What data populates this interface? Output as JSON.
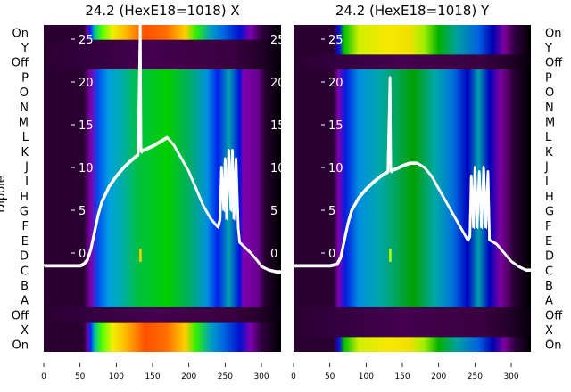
{
  "chart_data": {
    "type": "heatmap",
    "ylabel": "Dipole",
    "row_labels": [
      "On",
      "Y",
      "Off",
      "P",
      "O",
      "N",
      "M",
      "L",
      "K",
      "J",
      "I",
      "H",
      "G",
      "F",
      "E",
      "D",
      "C",
      "B",
      "A",
      "Off",
      "X",
      "On"
    ],
    "x_ticks": [
      0,
      50,
      100,
      150,
      200,
      250,
      300
    ],
    "xlim": [
      0,
      327
    ],
    "trace_ticks": [
      0,
      5,
      10,
      15,
      20,
      25
    ],
    "trace_ylim": [
      -7.0,
      31.2
    ],
    "panels": [
      {
        "title": "24.2 (HexE18=1018) X",
        "row_bands": [
          "hot",
          "dark",
          "dark",
          "mid",
          "mid",
          "mid",
          "mid",
          "mid",
          "mid",
          "mid",
          "mid",
          "mid",
          "mid",
          "mid",
          "mid",
          "mid",
          "mid",
          "mid",
          "mid",
          "dark",
          "hot",
          "hot"
        ],
        "marker": {
          "x": 133,
          "row": "D",
          "color": "#ffd000"
        },
        "trace": {
          "x": [
            0,
            50,
            55,
            60,
            65,
            70,
            75,
            80,
            90,
            100,
            110,
            120,
            130,
            133,
            134,
            136,
            140,
            150,
            160,
            170,
            180,
            190,
            200,
            210,
            220,
            230,
            240,
            243,
            245,
            248,
            250,
            252,
            255,
            258,
            260,
            262,
            265,
            268,
            270,
            275,
            285,
            295,
            300,
            310,
            320,
            327
          ],
          "y": [
            -1.5,
            -1.5,
            -1.3,
            -0.8,
            0.5,
            2.5,
            4.5,
            6,
            7.8,
            9,
            10,
            10.8,
            11.5,
            27,
            11.8,
            12,
            12.1,
            12.5,
            13,
            13.5,
            12.5,
            11,
            9.5,
            7.5,
            5.5,
            4,
            3,
            4,
            10,
            5,
            11,
            4,
            12,
            5,
            12,
            4,
            11,
            3,
            1.2,
            0.8,
            0,
            -1,
            -1.6,
            -2,
            -2.2,
            -2.2
          ]
        }
      },
      {
        "title": "24.2 (HexE18=1018) Y",
        "row_bands": [
          "hot2",
          "hot2",
          "dark",
          "mid2",
          "mid2",
          "mid2",
          "mid2",
          "mid2",
          "mid2",
          "mid2",
          "mid2",
          "mid2",
          "mid2",
          "mid2",
          "mid2",
          "mid2",
          "mid2",
          "mid2",
          "mid2",
          "dark",
          "dark",
          "hot2"
        ],
        "marker": {
          "x": 133,
          "row": "D",
          "color": "#c0ff00"
        },
        "trace": {
          "x": [
            0,
            50,
            60,
            65,
            70,
            75,
            80,
            90,
            100,
            110,
            120,
            130,
            133,
            134,
            136,
            140,
            150,
            160,
            170,
            180,
            190,
            200,
            210,
            220,
            230,
            240,
            243,
            245,
            248,
            250,
            253,
            256,
            259,
            262,
            265,
            268,
            270,
            280,
            290,
            300,
            310,
            320,
            327
          ],
          "y": [
            -1.5,
            -1.5,
            -1.3,
            -0.5,
            1.5,
            3.5,
            5,
            6.5,
            7.5,
            8.3,
            9,
            9.5,
            20.5,
            9.5,
            9.7,
            9.8,
            10.2,
            10.5,
            10.5,
            10,
            9,
            7.5,
            6,
            4.5,
            3,
            1.5,
            2,
            9,
            3,
            10,
            3,
            9.5,
            3,
            10,
            3,
            9.5,
            1.5,
            1,
            0,
            -1,
            -1.6,
            -2,
            -2
          ]
        }
      }
    ]
  }
}
